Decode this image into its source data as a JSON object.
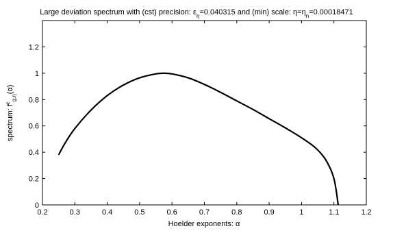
{
  "chart_data": {
    "type": "line",
    "title_parts": [
      {
        "t": "Large deviation spectrum with (cst) precision: ε",
        "s": "n"
      },
      {
        "t": "η",
        "s": "sub"
      },
      {
        "t": "=0.040315 and (min) scale: η=η",
        "s": "n"
      },
      {
        "t": "n",
        "s": "sub"
      },
      {
        "t": "=0.00018471",
        "s": "n"
      }
    ],
    "xlabel": "Hoelder exponents: α",
    "ylabel_parts": [
      {
        "t": "spectrum: f",
        "s": "n"
      },
      {
        "t": "ε",
        "s": "sup"
      },
      {
        "t": "g,η",
        "s": "sub"
      },
      {
        "t": "(α)",
        "s": "n"
      }
    ],
    "xlim": [
      0.2,
      1.2
    ],
    "ylim": [
      0,
      1.4
    ],
    "xticks": [
      "0.2",
      "0.3",
      "0.4",
      "0.5",
      "0.6",
      "0.7",
      "0.8",
      "0.9",
      "1",
      "1.1",
      "1.2"
    ],
    "yticks": [
      "0",
      "0.2",
      "0.4",
      "0.6",
      "0.8",
      "1",
      "1.2"
    ],
    "grid": false,
    "series": [
      {
        "color": "#000000",
        "x": [
          0.25,
          0.27,
          0.3,
          0.35,
          0.4,
          0.45,
          0.5,
          0.55,
          0.575,
          0.6,
          0.65,
          0.7,
          0.75,
          0.8,
          0.85,
          0.9,
          0.95,
          1.0,
          1.04,
          1.07,
          1.09,
          1.1,
          1.105,
          1.11,
          1.113
        ],
        "y": [
          0.38,
          0.47,
          0.58,
          0.72,
          0.83,
          0.91,
          0.965,
          0.995,
          1.0,
          0.995,
          0.965,
          0.915,
          0.855,
          0.79,
          0.725,
          0.655,
          0.585,
          0.51,
          0.44,
          0.36,
          0.27,
          0.2,
          0.14,
          0.06,
          0.0
        ]
      }
    ]
  }
}
